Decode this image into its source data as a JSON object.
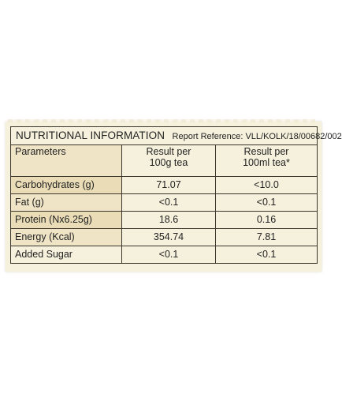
{
  "panel": {
    "title": "NUTRITIONAL INFORMATION",
    "report_reference": "Report Reference: VLL/KOLK/18/00682/002"
  },
  "columns": {
    "parameter": "Parameters",
    "per_100g_line1": "Result per",
    "per_100g_line2": "100g tea",
    "per_100ml_line1": "Result per",
    "per_100ml_line2": "100ml tea*"
  },
  "rows": [
    {
      "parameter": "Carbohydrates (g)",
      "per_100g": "71.07",
      "per_100ml": "<10.0"
    },
    {
      "parameter": "Fat (g)",
      "per_100g": "<0.1",
      "per_100ml": "<0.1"
    },
    {
      "parameter": "Protein (Nx6.25g)",
      "per_100g": "18.6",
      "per_100ml": "0.16"
    },
    {
      "parameter": "Energy (Kcal)",
      "per_100g": "354.74",
      "per_100ml": "7.81"
    },
    {
      "parameter": "Added Sugar",
      "per_100g": "<0.1",
      "per_100ml": "<0.1"
    }
  ],
  "colors": {
    "label_background": "#f6f1dc",
    "border": "#3a362c",
    "text": "#222222"
  }
}
